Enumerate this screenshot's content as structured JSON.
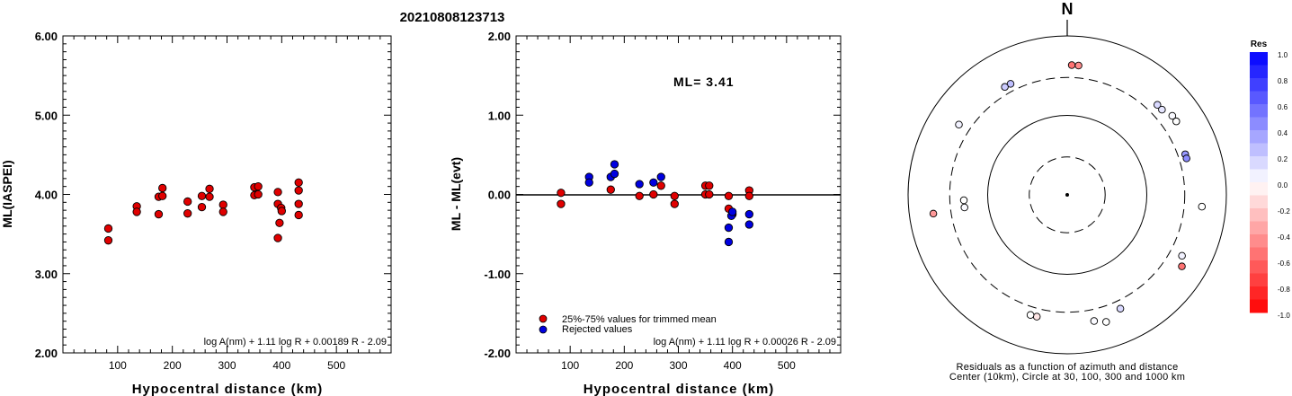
{
  "page_title": "20210808123713",
  "chart_data": [
    {
      "type": "scatter",
      "xlabel": "Hypocentral distance (km)",
      "ylabel": "ML(IASPEI)",
      "xlim": [
        0,
        600
      ],
      "ylim": [
        2.0,
        6.0
      ],
      "x_ticks": [
        "100",
        "200",
        "300",
        "400",
        "500"
      ],
      "y_ticks": [
        "2.00",
        "3.00",
        "4.00",
        "5.00",
        "6.00"
      ],
      "formula": "log A(nm) + 1.11 log R + 0.00189 R - 2.09",
      "points": [
        {
          "x": 83,
          "y": 3.57
        },
        {
          "x": 83,
          "y": 3.42
        },
        {
          "x": 135,
          "y": 3.85
        },
        {
          "x": 135,
          "y": 3.78
        },
        {
          "x": 175,
          "y": 3.97
        },
        {
          "x": 175,
          "y": 3.75
        },
        {
          "x": 182,
          "y": 4.08
        },
        {
          "x": 182,
          "y": 3.98
        },
        {
          "x": 228,
          "y": 3.91
        },
        {
          "x": 228,
          "y": 3.76
        },
        {
          "x": 254,
          "y": 3.98
        },
        {
          "x": 254,
          "y": 3.84
        },
        {
          "x": 268,
          "y": 4.07
        },
        {
          "x": 268,
          "y": 3.97
        },
        {
          "x": 293,
          "y": 3.87
        },
        {
          "x": 293,
          "y": 3.78
        },
        {
          "x": 350,
          "y": 4.09
        },
        {
          "x": 350,
          "y": 3.99
        },
        {
          "x": 357,
          "y": 4.1
        },
        {
          "x": 357,
          "y": 4.0
        },
        {
          "x": 393,
          "y": 4.03
        },
        {
          "x": 393,
          "y": 3.88
        },
        {
          "x": 393,
          "y": 3.45
        },
        {
          "x": 396,
          "y": 3.64
        },
        {
          "x": 399,
          "y": 3.83
        },
        {
          "x": 400,
          "y": 3.79
        },
        {
          "x": 431,
          "y": 4.15
        },
        {
          "x": 431,
          "y": 4.05
        },
        {
          "x": 431,
          "y": 3.88
        },
        {
          "x": 431,
          "y": 3.74
        }
      ]
    },
    {
      "type": "scatter",
      "xlabel": "Hypocentral distance (km)",
      "ylabel": "ML - ML(evt)",
      "xlim": [
        0,
        600
      ],
      "ylim": [
        -2.0,
        2.0
      ],
      "x_ticks": [
        "100",
        "200",
        "300",
        "400",
        "500"
      ],
      "y_ticks": [
        "-2.00",
        "-1.00",
        "0.00",
        "1.00",
        "2.00"
      ],
      "annotation": "ML= 3.41",
      "formula": "log A(nm) + 1.11 log R + 0.00026 R - 2.09",
      "legend": [
        {
          "label": "25%-75% values for trimmed mean",
          "color": "#e00000"
        },
        {
          "label": "Rejected values",
          "color": "#0000e0"
        }
      ],
      "series": [
        {
          "name": "25%-75% values for trimmed mean",
          "color": "#e00000",
          "points": [
            {
              "x": 83,
              "y": 0.02
            },
            {
              "x": 83,
              "y": -0.12
            },
            {
              "x": 175,
              "y": 0.06
            },
            {
              "x": 228,
              "y": -0.02
            },
            {
              "x": 254,
              "y": 0.0
            },
            {
              "x": 268,
              "y": 0.11
            },
            {
              "x": 293,
              "y": -0.02
            },
            {
              "x": 293,
              "y": -0.12
            },
            {
              "x": 350,
              "y": 0.11
            },
            {
              "x": 350,
              "y": 0.0
            },
            {
              "x": 357,
              "y": 0.11
            },
            {
              "x": 357,
              "y": 0.0
            },
            {
              "x": 393,
              "y": -0.02
            },
            {
              "x": 393,
              "y": -0.18
            },
            {
              "x": 400,
              "y": -0.25
            },
            {
              "x": 431,
              "y": 0.05
            },
            {
              "x": 431,
              "y": -0.02
            }
          ]
        },
        {
          "name": "Rejected values",
          "color": "#0000e0",
          "points": [
            {
              "x": 135,
              "y": 0.22
            },
            {
              "x": 135,
              "y": 0.15
            },
            {
              "x": 175,
              "y": 0.22
            },
            {
              "x": 182,
              "y": 0.38
            },
            {
              "x": 182,
              "y": 0.26
            },
            {
              "x": 228,
              "y": 0.13
            },
            {
              "x": 254,
              "y": 0.15
            },
            {
              "x": 268,
              "y": 0.22
            },
            {
              "x": 393,
              "y": -0.42
            },
            {
              "x": 393,
              "y": -0.6
            },
            {
              "x": 398,
              "y": -0.27
            },
            {
              "x": 400,
              "y": -0.22
            },
            {
              "x": 431,
              "y": -0.25
            },
            {
              "x": 431,
              "y": -0.38
            }
          ]
        }
      ]
    },
    {
      "type": "polar-scatter",
      "north_label": "N",
      "caption_line1": "Residuals as a function of azimuth and distance",
      "caption_line2": "Center (10km), Circle at 30, 100, 300 and 1000 km",
      "rings_km": [
        30,
        100,
        300,
        1000
      ],
      "points": [
        {
          "az": 2,
          "dist_km": 430,
          "res": -0.55
        },
        {
          "az": 5,
          "dist_km": 430,
          "res": -0.45
        },
        {
          "az": 333,
          "dist_km": 370,
          "res": 0.25
        },
        {
          "az": 330,
          "dist_km": 370,
          "res": 0.2
        },
        {
          "az": 303,
          "dist_km": 420,
          "res": 0.05
        },
        {
          "az": 45,
          "dist_km": 400,
          "res": 0.15
        },
        {
          "az": 48,
          "dist_km": 400,
          "res": 0.1
        },
        {
          "az": 53,
          "dist_km": 450,
          "res": 0.02
        },
        {
          "az": 56,
          "dist_km": 450,
          "res": 0.0
        },
        {
          "az": 71,
          "dist_km": 370,
          "res": 0.4
        },
        {
          "az": 73,
          "dist_km": 370,
          "res": 0.45
        },
        {
          "az": 263,
          "dist_km": 200,
          "res": 0.02
        },
        {
          "az": 267,
          "dist_km": 200,
          "res": 0.0
        },
        {
          "az": 262,
          "dist_km": 500,
          "res": -0.4
        },
        {
          "az": 95,
          "dist_km": 500,
          "res": 0.0
        },
        {
          "az": 118,
          "dist_km": 430,
          "res": 0.05
        },
        {
          "az": 122,
          "dist_km": 500,
          "res": -0.55
        },
        {
          "az": 155,
          "dist_km": 380,
          "res": 0.15
        },
        {
          "az": 168,
          "dist_km": 420,
          "res": 0.02
        },
        {
          "az": 163,
          "dist_km": 470,
          "res": 0.0
        },
        {
          "az": 194,
          "dist_km": 380,
          "res": -0.1
        },
        {
          "az": 197,
          "dist_km": 380,
          "res": 0.0
        }
      ]
    }
  ],
  "colorbar": {
    "title": "Res",
    "labels": [
      "1.0",
      "0.8",
      "0.6",
      "0.4",
      "0.2",
      "0.0",
      "-0.2",
      "-0.4",
      "-0.6",
      "-0.8",
      "-1.0"
    ],
    "positive_color": "#0000ff",
    "negative_color": "#ff0000"
  }
}
